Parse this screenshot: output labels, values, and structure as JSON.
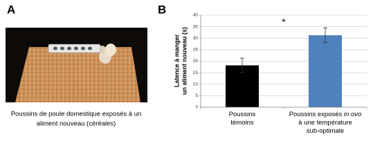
{
  "panel_a": {
    "label": "A",
    "caption": [
      "Poussins de poule domestique exposés à un",
      "aliment nouveau (céréales)"
    ]
  },
  "chart_data": {
    "type": "bar",
    "panel_label": "B",
    "ylabel": [
      "Latence à manger",
      "un aliment nouveau (s)"
    ],
    "categories": [
      [
        "Poussins",
        "témoins"
      ],
      [
        "Poussins exposés",
        "in ovo",
        "à une température",
        "sub-optimale"
      ]
    ],
    "values": [
      18.2,
      31.3
    ],
    "errors": [
      3.1,
      3.2
    ],
    "colors": [
      "#000000",
      "#4f81bd"
    ],
    "significance": "*",
    "ylim": [
      0,
      40
    ],
    "yticks": [
      0,
      5,
      10,
      15,
      20,
      25,
      30,
      35,
      40
    ],
    "grid": true
  }
}
